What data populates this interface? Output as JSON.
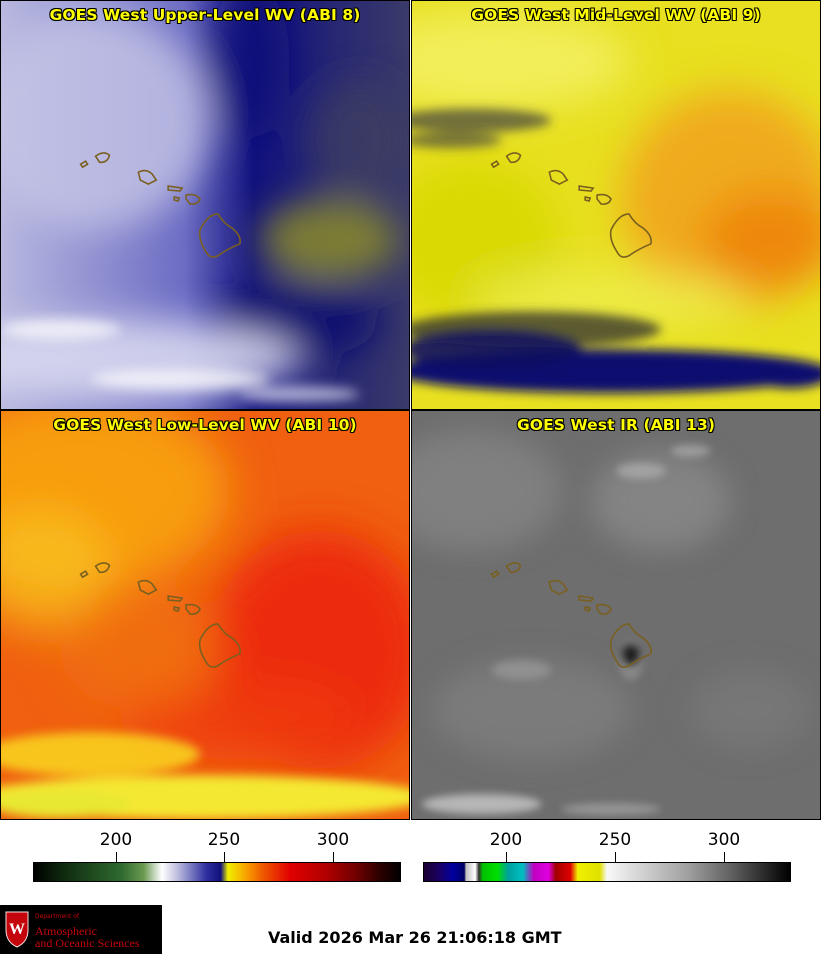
{
  "panels": [
    {
      "title": "GOES West Upper-Level WV (ABI 8)"
    },
    {
      "title": "GOES West Mid-Level WV (ABI 9)"
    },
    {
      "title": "GOES West Low-Level WV (ABI 10)"
    },
    {
      "title": "GOES West IR (ABI 13)"
    }
  ],
  "colorbars": [
    {
      "ticks": [
        "200",
        "250",
        "300"
      ]
    },
    {
      "ticks": [
        "200",
        "250",
        "300"
      ]
    }
  ],
  "logo": {
    "department": "Department of",
    "line1": "Atmospheric",
    "line2": "and Oceanic Sciences"
  },
  "valid_time": "Valid 2026 Mar 26 21:06:18 GMT",
  "colors": {
    "title_text": "#ffff00",
    "coastline": "#7a6020",
    "logo_red": "#c5050c"
  }
}
